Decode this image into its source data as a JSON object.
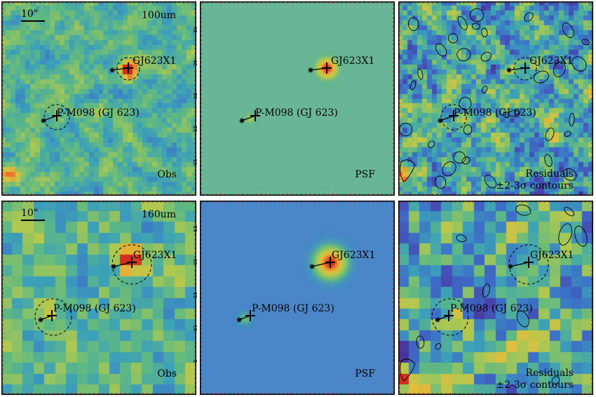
{
  "panels": [
    {
      "id": "r1c1",
      "row": 0,
      "col": 0,
      "band_label": "100um",
      "corner_lines": [
        "Obs"
      ],
      "scalebar": "10\"",
      "type": "obs",
      "field": "rough",
      "contours": false,
      "ticks": [
        "10",
        "20",
        "30",
        "40",
        "50"
      ]
    },
    {
      "id": "r1c2",
      "row": 0,
      "col": 1,
      "band_label": "",
      "corner_lines": [
        "PSF"
      ],
      "scalebar": "",
      "type": "psf",
      "field": "model",
      "contours": false,
      "ticks": []
    },
    {
      "id": "r1c3",
      "row": 0,
      "col": 2,
      "band_label": "",
      "corner_lines": [
        "Residuals",
        "±2-3σ contours"
      ],
      "scalebar": "",
      "type": "res",
      "field": "rough",
      "contours": true,
      "ticks": []
    },
    {
      "id": "r2c1",
      "row": 1,
      "col": 0,
      "band_label": "160um",
      "corner_lines": [
        "Obs"
      ],
      "scalebar": "10\"",
      "type": "obs",
      "field": "coarse",
      "contours": false,
      "ticks": [
        "5",
        "10",
        "15",
        "20",
        "25"
      ]
    },
    {
      "id": "r2c2",
      "row": 1,
      "col": 1,
      "band_label": "",
      "corner_lines": [
        "PSF"
      ],
      "scalebar": "",
      "type": "psf",
      "field": "model",
      "contours": false,
      "ticks": []
    },
    {
      "id": "r2c3",
      "row": 1,
      "col": 2,
      "band_label": "",
      "corner_lines": [
        "Residuals",
        "±2-3σ contours"
      ],
      "scalebar": "",
      "type": "res",
      "field": "coarse",
      "contours": true,
      "ticks": []
    }
  ],
  "sources": {
    "primary": {
      "label": "P-M098 (GJ 623)"
    },
    "companion": {
      "label": "GJ623X1"
    }
  },
  "colors": {
    "frame": "#000000",
    "ruler": "#cc0000",
    "psf_bg_100": "#69b597",
    "psf_bg_160": "#4a86c8",
    "peak": "#d8331e"
  }
}
